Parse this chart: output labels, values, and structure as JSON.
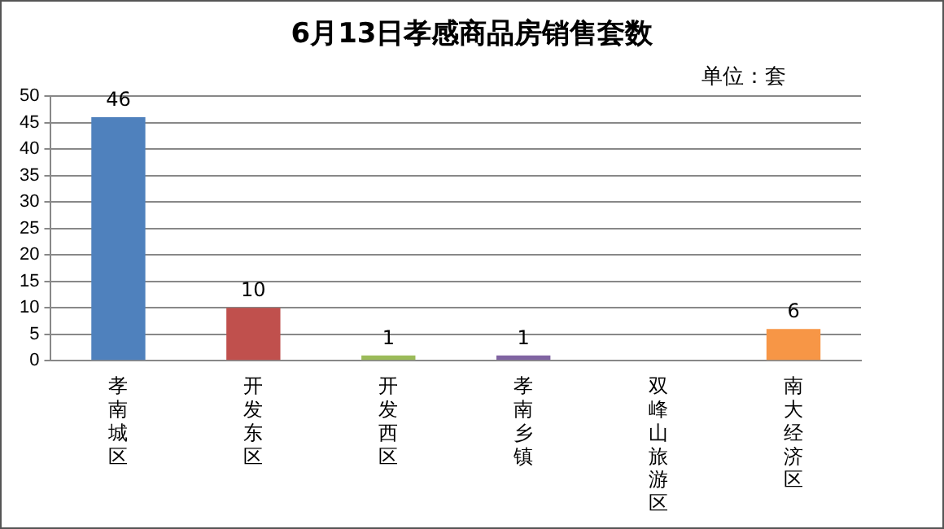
{
  "chart_data": {
    "type": "bar",
    "title": "6月13日孝感商品房销售套数",
    "annotations": [
      "单位：套"
    ],
    "categories": [
      "孝南城区",
      "开发东区",
      "开发西区",
      "孝南乡镇",
      "双峰山旅游区",
      "南大经济区"
    ],
    "values": [
      46,
      10,
      1,
      1,
      0,
      6
    ],
    "colors": [
      "#4f81bd",
      "#c0504d",
      "#9bbb59",
      "#8064a2",
      "#4bacc6",
      "#f79646"
    ],
    "value_labels": [
      "46",
      "10",
      "1",
      "1",
      null,
      "6"
    ],
    "ylim": [
      0,
      50
    ],
    "yticks": [
      0,
      5,
      10,
      15,
      20,
      25,
      30,
      35,
      40,
      45,
      50
    ],
    "grid": "y",
    "legend": false
  }
}
